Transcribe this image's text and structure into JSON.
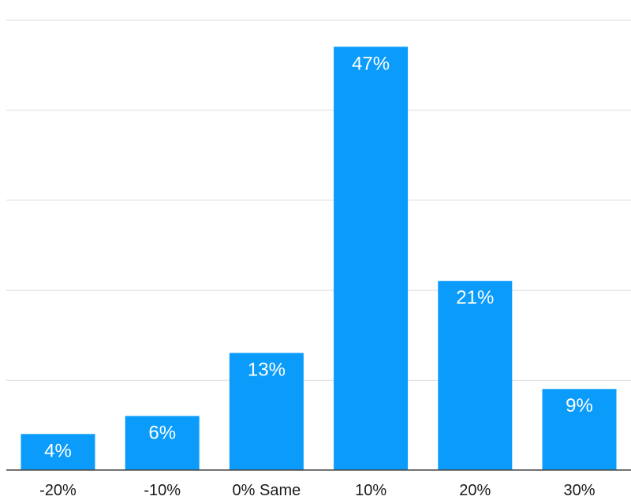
{
  "chart_data": {
    "type": "bar",
    "categories": [
      "-20%",
      "-10%",
      "0% Same",
      "10%",
      "20%",
      "30%"
    ],
    "values": [
      4,
      6,
      13,
      47,
      21,
      9
    ],
    "data_labels": [
      "4%",
      "6%",
      "13%",
      "47%",
      "21%",
      "9%"
    ],
    "ylim": [
      0,
      50
    ],
    "grid": true,
    "colors": {
      "bar": "#0b9cfb",
      "bar_label": "#ffffff",
      "grid": "#dcdcdc"
    }
  }
}
